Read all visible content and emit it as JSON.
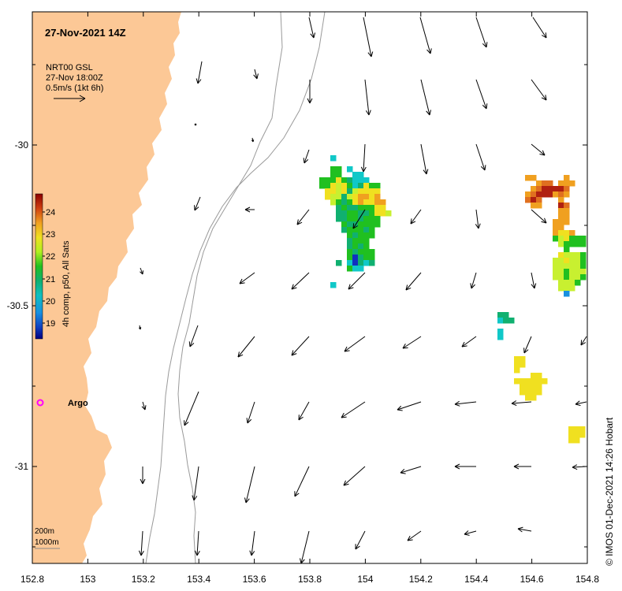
{
  "map": {
    "title": "27-Nov-2021 14Z",
    "vector_legend": {
      "line1": "NRT00 GSL",
      "line2": "27-Nov 18:00Z",
      "line3": "0.5m/s (1kt 6h)"
    },
    "colorbar": {
      "label": "4h comp, p50, All Sats",
      "ticks": [
        "24",
        "23",
        "22",
        "21",
        "20",
        "19"
      ],
      "colors": [
        "#8b0000",
        "#c0301a",
        "#e07020",
        "#f0a020",
        "#f0d020",
        "#d8f020",
        "#80e020",
        "#20c020",
        "#10b070",
        "#10c0c0",
        "#1890e0",
        "#1040c0",
        "#000080"
      ]
    },
    "x_ticks": [
      "152.8",
      "153",
      "153.2",
      "153.4",
      "153.6",
      "153.8",
      "154",
      "154.2",
      "154.4",
      "154.6",
      "154.8"
    ],
    "y_ticks": [
      "-30",
      "-30.5",
      "-31"
    ],
    "argo_label": "Argo",
    "depth_legend": {
      "line1": "200m",
      "line2": "1000m"
    },
    "credit": "© IMOS 01-Dec-2021 14:26 Hobart",
    "land_color": "#fcc896",
    "argo_color": "#ff00ff"
  }
}
